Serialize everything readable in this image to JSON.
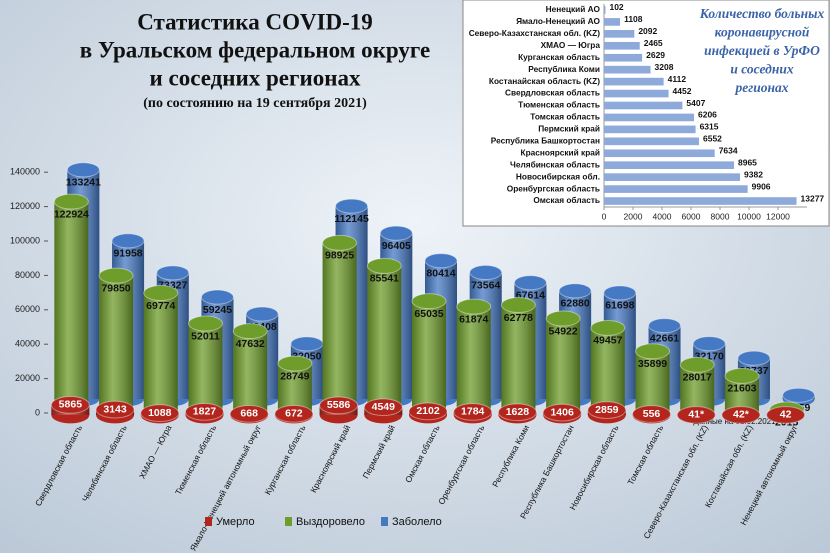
{
  "chart_data": [
    {
      "type": "bar",
      "style": "cylinder-3d",
      "title_lines": [
        "Статистика COVID-19",
        "в Уральском федеральном округе",
        "и соседних регионах"
      ],
      "subtitle": "(по состоянию  на 19 сентября 2021)",
      "categories": [
        "Свердловская область",
        "Челябинская область",
        "ХМАО — Югра",
        "Тюменская область",
        "Ямало-Ненецкий автономный округ",
        "Курганская область",
        "Красноярский край",
        "Пермский край",
        "Омская область",
        "Оренбургская область",
        "Республика Коми",
        "Республика Башкортостан",
        "Новосибирская область",
        "Томская область",
        "Северо-Казахстанская обл. (KZ)",
        "Костанайская обл. (KZ)",
        "Ненецкий автономный округ"
      ],
      "series": [
        {
          "name": "Умерло",
          "color": "#b3261e",
          "values": [
            5865,
            3143,
            1088,
            1827,
            668,
            672,
            5586,
            4549,
            2102,
            1784,
            1628,
            1406,
            2859,
            556,
            41,
            42,
            42
          ],
          "value_labels": [
            "5865",
            "3143",
            "1088",
            "1827",
            "668",
            "672",
            "5586",
            "4549",
            "2102",
            "1784",
            "1628",
            "1406",
            "2859",
            "556",
            "41*",
            "42*",
            "42"
          ]
        },
        {
          "name": "Выздоровело",
          "color": "#6f9d2c",
          "values": [
            122924,
            79850,
            69774,
            52011,
            47632,
            28749,
            98925,
            85541,
            65035,
            61874,
            62778,
            54922,
            49457,
            35899,
            28017,
            21603,
            2015
          ]
        },
        {
          "name": "Заболело",
          "color": "#4679c4",
          "values": [
            133241,
            91958,
            73327,
            59245,
            49408,
            32050,
            112145,
            96405,
            80414,
            73564,
            67614,
            62880,
            61698,
            42661,
            32170,
            23737,
            2159
          ]
        }
      ],
      "ylim": [
        0,
        150000
      ],
      "yticks": [
        0,
        20000,
        40000,
        60000,
        80000,
        100000,
        120000,
        140000
      ],
      "annotation": "* Данные на 01.02.2021",
      "legend": "bottom"
    },
    {
      "type": "bar",
      "orientation": "horizontal",
      "title_lines": [
        "Количество больных",
        "коронавирусной",
        "инфекцией в УрФО",
        "и соседних",
        "регионах"
      ],
      "categories": [
        "Ненецкий АО",
        "Ямало-Ненецкий АО",
        "Северо-Казахстанская обл. (KZ)",
        "ХМАО — Югра",
        "Курганская область",
        "Республика Коми",
        "Костанайская область (KZ)",
        "Свердловская область",
        "Тюменская область",
        "Томская область",
        "Пермский край",
        "Республика Башкортостан",
        "Красноярский край",
        "Челябинская область",
        "Новосибирская обл.",
        "Оренбургская область",
        "Омская область"
      ],
      "values": [
        102,
        1108,
        2092,
        2465,
        2629,
        3208,
        4112,
        4452,
        5407,
        6206,
        6315,
        6552,
        7634,
        8965,
        9382,
        9906,
        13277
      ],
      "color": "#8eaadb",
      "xlim": [
        0,
        14000
      ],
      "xticks": [
        0,
        2000,
        4000,
        6000,
        8000,
        10000,
        12000
      ]
    }
  ]
}
